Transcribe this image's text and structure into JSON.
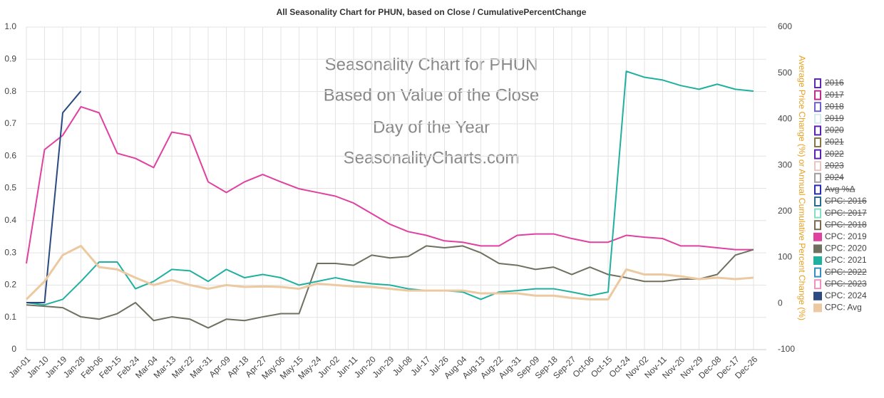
{
  "chart_data": {
    "type": "line",
    "title": "All Seasonality Chart for PHUN, based on Close / CumulativePercentChange",
    "watermark": [
      "Seasonality Chart for PHUN",
      "Based on Value of the Close",
      "Day of the Year",
      "SeasonalityCharts.com"
    ],
    "y2_label": "Average Price Change (%) or Annual Cumulative Percent Change (%)",
    "categories": [
      "Jan-01",
      "Jan-10",
      "Jan-19",
      "Jan-28",
      "Feb-06",
      "Feb-15",
      "Feb-24",
      "Mar-04",
      "Mar-13",
      "Mar-22",
      "Mar-31",
      "Apr-09",
      "Apr-18",
      "Apr-27",
      "May-06",
      "May-15",
      "May-24",
      "Jun-02",
      "Jun-11",
      "Jun-20",
      "Jun-29",
      "Jul-08",
      "Jul-17",
      "Jul-26",
      "Aug-04",
      "Aug-13",
      "Aug-22",
      "Aug-31",
      "Sep-09",
      "Sep-18",
      "Sep-27",
      "Oct-06",
      "Oct-15",
      "Oct-24",
      "Nov-02",
      "Nov-11",
      "Nov-20",
      "Nov-29",
      "Dec-08",
      "Dec-17",
      "Dec-26"
    ],
    "ylim": [
      0,
      1
    ],
    "yticks": [
      0,
      0.1,
      0.2,
      0.3,
      0.4,
      0.5,
      0.6,
      0.7,
      0.8,
      0.9,
      {
        "value": 1,
        "label": "1.0"
      }
    ],
    "y2lim": [
      -100,
      600
    ],
    "y2ticks": [
      -100,
      0,
      100,
      200,
      300,
      400,
      500,
      600
    ],
    "grid": true,
    "legend": "right",
    "series": [
      {
        "name": "2016",
        "color": "#5a2bb0",
        "hidden": true
      },
      {
        "name": "2017",
        "color": "#c02a8a",
        "hidden": true
      },
      {
        "name": "2018",
        "color": "#6b62d0",
        "hidden": true
      },
      {
        "name": "2019",
        "color": "#d4eaee",
        "hidden": true
      },
      {
        "name": "2020",
        "color": "#5a22b0",
        "hidden": true
      },
      {
        "name": "2021",
        "color": "#857540",
        "hidden": true
      },
      {
        "name": "2022",
        "color": "#5a22b0",
        "hidden": true
      },
      {
        "name": "2023",
        "color": "#e6c6c0",
        "hidden": true
      },
      {
        "name": "2024",
        "color": "#a09ca0",
        "hidden": true
      },
      {
        "name": "Avg %Δ",
        "color": "#2a2ab0",
        "hidden": true
      },
      {
        "name": "CPC: 2016",
        "color": "#2a6a90",
        "hidden": true
      },
      {
        "name": "CPC: 2017",
        "color": "#7ee0c0",
        "hidden": true
      },
      {
        "name": "CPC: 2018",
        "color": "#7a6a50",
        "hidden": true
      },
      {
        "name": "CPC: 2019",
        "color": "#e040a0",
        "axis": "y2",
        "values": [
          87,
          334,
          365,
          427,
          414,
          326,
          315,
          295,
          372,
          365,
          264,
          241,
          264,
          280,
          264,
          249,
          241,
          233,
          218,
          195,
          172,
          156,
          148,
          136,
          133,
          125,
          125,
          148,
          151,
          151,
          141,
          133,
          133,
          148,
          144,
          141,
          125,
          125,
          121,
          117,
          117
        ]
      },
      {
        "name": "CPC: 2020",
        "color": "#707060",
        "axis": "y2",
        "values": [
          -3,
          -6,
          -9,
          -29,
          -34,
          -22,
          2,
          -37,
          -29,
          -34,
          -53,
          -34,
          -37,
          -29,
          -22,
          -22,
          87,
          87,
          83,
          105,
          99,
          102,
          125,
          121,
          125,
          110,
          87,
          83,
          74,
          79,
          63,
          79,
          63,
          56,
          48,
          48,
          53,
          53,
          63,
          105,
          117
        ]
      },
      {
        "name": "CPC: 2021",
        "color": "#20b0a0",
        "axis": "y2",
        "values": [
          2,
          -3,
          9,
          48,
          90,
          90,
          32,
          48,
          74,
          71,
          48,
          74,
          56,
          63,
          56,
          40,
          48,
          56,
          48,
          43,
          40,
          32,
          28,
          28,
          25,
          9,
          25,
          28,
          32,
          32,
          25,
          17,
          25,
          504,
          491,
          485,
          473,
          465,
          476,
          465,
          461
        ]
      },
      {
        "name": "CPC: 2022",
        "color": "#3090c0",
        "hidden": true
      },
      {
        "name": "CPC: 2023",
        "color": "#f090c0",
        "hidden": true
      },
      {
        "name": "CPC: 2024",
        "color": "#2a4a80",
        "axis": "y2",
        "values": [
          2,
          2,
          414,
          461,
          null,
          null,
          null,
          null,
          null,
          null,
          null,
          null,
          null,
          null,
          null,
          null,
          null,
          null,
          null,
          null,
          null,
          null,
          null,
          null,
          null,
          null,
          null,
          null,
          null,
          null,
          null,
          null,
          null,
          null,
          null,
          null,
          null,
          null,
          null,
          null,
          null
        ]
      },
      {
        "name": "CPC: Avg",
        "color": "#ecc9a0",
        "axis": "y2",
        "width": 3,
        "values": [
          9,
          48,
          105,
          125,
          79,
          74,
          56,
          40,
          51,
          40,
          32,
          40,
          36,
          37,
          36,
          32,
          43,
          40,
          37,
          36,
          32,
          28,
          28,
          28,
          28,
          22,
          22,
          22,
          17,
          17,
          12,
          9,
          9,
          74,
          63,
          63,
          59,
          53,
          56,
          53,
          56
        ]
      }
    ]
  }
}
